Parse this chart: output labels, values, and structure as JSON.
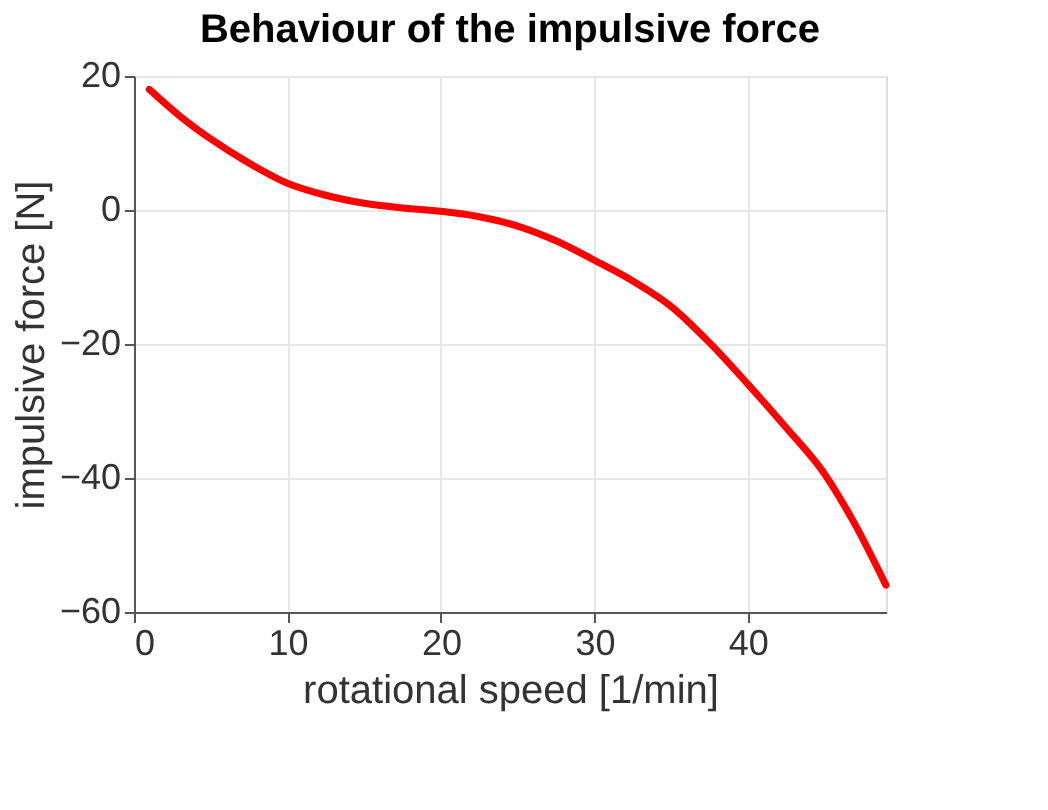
{
  "chart_data": {
    "type": "line",
    "title": "Behaviour of the impulsive force",
    "xlabel": "rotational speed [1/min]",
    "ylabel": "impulsive force [N]",
    "x": [
      1,
      3,
      5,
      7.5,
      10,
      12.5,
      15,
      17.5,
      20,
      22.5,
      25,
      27.5,
      30,
      32.5,
      35,
      37.5,
      40,
      42.5,
      45,
      47,
      49
    ],
    "series": [
      {
        "color": "#ff0000",
        "values": [
          18,
          14,
          10.6,
          7,
          4,
          2.2,
          1,
          0.3,
          -0.2,
          -1,
          -2.4,
          -4.6,
          -7.5,
          -10.6,
          -14.4,
          -19.8,
          -26,
          -32.5,
          -39.4,
          -47,
          -56
        ]
      }
    ],
    "xlim": [
      0,
      49
    ],
    "xticks": [
      0,
      10,
      20,
      30,
      40
    ],
    "ylim": [
      -60,
      20
    ],
    "yticks": [
      -60,
      -40,
      -20,
      0,
      20
    ],
    "grid": true,
    "marker": "none",
    "line_style": "solid"
  }
}
